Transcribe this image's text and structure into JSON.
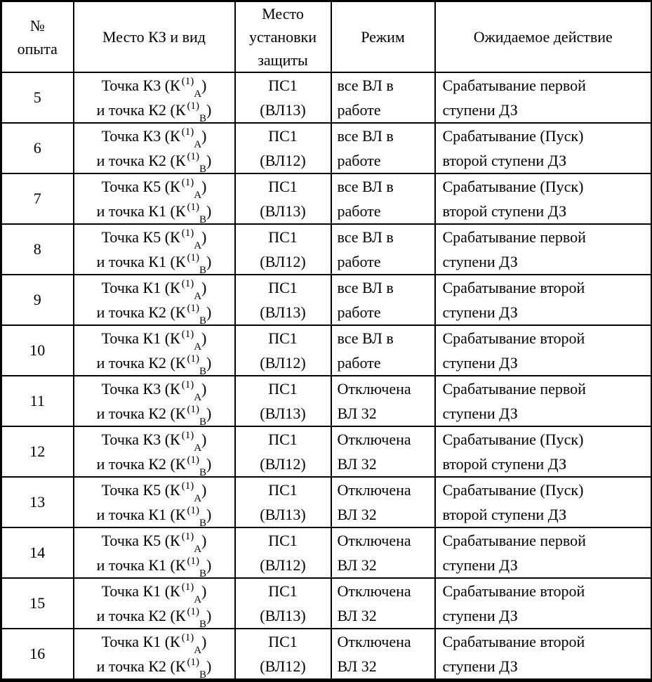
{
  "header": {
    "col_num": [
      "№",
      "опыта"
    ],
    "col_kz": "Место КЗ и вид",
    "col_install": [
      "Место",
      "установки",
      "защиты"
    ],
    "col_mode": "Режим",
    "col_action": "Ожидаемое действие"
  },
  "rows": [
    {
      "num": "5",
      "kz": [
        {
          "pre": "Точка К3 (К",
          "sup": "(1)",
          "sub": "А",
          "post": ")"
        },
        {
          "pre": "и точка К2 (К",
          "sup": "(1)",
          "sub": "В",
          "post": ")"
        }
      ],
      "install": [
        "ПС1",
        "(ВЛ13)"
      ],
      "mode": [
        "все ВЛ в",
        "работе"
      ],
      "action": [
        "Срабатывание первой",
        "ступени ДЗ"
      ]
    },
    {
      "num": "6",
      "kz": [
        {
          "pre": "Точка К3 (К",
          "sup": "(1)",
          "sub": "А",
          "post": ")"
        },
        {
          "pre": "и точка К2 (К",
          "sup": "(1)",
          "sub": "В",
          "post": ")"
        }
      ],
      "install": [
        "ПС1",
        "(ВЛ12)"
      ],
      "mode": [
        "все ВЛ в",
        "работе"
      ],
      "action": [
        "Срабатывание (Пуск)",
        "второй ступени ДЗ"
      ]
    },
    {
      "num": "7",
      "kz": [
        {
          "pre": "Точка К5 (К",
          "sup": "(1)",
          "sub": "А",
          "post": ")"
        },
        {
          "pre": "и точка К1 (К",
          "sup": "(1)",
          "sub": "В",
          "post": ")"
        }
      ],
      "install": [
        "ПС1",
        "(ВЛ13)"
      ],
      "mode": [
        "все ВЛ в",
        "работе"
      ],
      "action": [
        "Срабатывание (Пуск)",
        "второй ступени ДЗ"
      ]
    },
    {
      "num": "8",
      "kz": [
        {
          "pre": "Точка К5 (К",
          "sup": "(1)",
          "sub": "А",
          "post": ")"
        },
        {
          "pre": "и точка К1 (К",
          "sup": "(1)",
          "sub": "В",
          "post": ")"
        }
      ],
      "install": [
        "ПС1",
        "(ВЛ12)"
      ],
      "mode": [
        "все ВЛ в",
        "работе"
      ],
      "action": [
        "Срабатывание первой",
        "ступени ДЗ"
      ]
    },
    {
      "num": "9",
      "kz": [
        {
          "pre": "Точка К1 (К",
          "sup": "(1)",
          "sub": "А",
          "post": ")"
        },
        {
          "pre": "и точка К2 (К",
          "sup": "(1)",
          "sub": "В",
          "post": ")"
        }
      ],
      "install": [
        "ПС1",
        "(ВЛ13)"
      ],
      "mode": [
        "все ВЛ в",
        "работе"
      ],
      "action": [
        "Срабатывание второй",
        "ступени ДЗ"
      ]
    },
    {
      "num": "10",
      "kz": [
        {
          "pre": "Точка К1 (К",
          "sup": "(1)",
          "sub": "А",
          "post": ")"
        },
        {
          "pre": "и точка К2 (К",
          "sup": "(1)",
          "sub": "В",
          "post": ")"
        }
      ],
      "install": [
        "ПС1",
        "(ВЛ12)"
      ],
      "mode": [
        "все ВЛ в",
        "работе"
      ],
      "action": [
        "Срабатывание второй",
        "ступени ДЗ"
      ]
    },
    {
      "num": "11",
      "kz": [
        {
          "pre": "Точка К3 (К",
          "sup": "(1)",
          "sub": "А",
          "post": ")"
        },
        {
          "pre": "и точка К2 (К",
          "sup": "(1)",
          "sub": "В",
          "post": ")"
        }
      ],
      "install": [
        "ПС1",
        "(ВЛ13)"
      ],
      "mode": [
        "Отключена",
        "ВЛ 32"
      ],
      "action": [
        "Срабатывание первой",
        "ступени ДЗ"
      ]
    },
    {
      "num": "12",
      "kz": [
        {
          "pre": "Точка К3 (К",
          "sup": "(1)",
          "sub": "А",
          "post": ")"
        },
        {
          "pre": "и точка К2 (К",
          "sup": "(1)",
          "sub": "В",
          "post": ")"
        }
      ],
      "install": [
        "ПС1",
        "(ВЛ12)"
      ],
      "mode": [
        "Отключена",
        "ВЛ 32"
      ],
      "action": [
        "Срабатывание (Пуск)",
        "второй ступени ДЗ"
      ]
    },
    {
      "num": "13",
      "kz": [
        {
          "pre": "Точка К5 (К",
          "sup": "(1)",
          "sub": "А",
          "post": ")"
        },
        {
          "pre": "и точка К1 (К",
          "sup": "(1)",
          "sub": "В",
          "post": ")"
        }
      ],
      "install": [
        "ПС1",
        "(ВЛ13)"
      ],
      "mode": [
        "Отключена",
        "ВЛ 32"
      ],
      "action": [
        "Срабатывание (Пуск)",
        "второй ступени ДЗ"
      ]
    },
    {
      "num": "14",
      "kz": [
        {
          "pre": "Точка К5 (К",
          "sup": "(1)",
          "sub": "А",
          "post": ")"
        },
        {
          "pre": "и точка К1 (К",
          "sup": "(1)",
          "sub": "В",
          "post": ")"
        }
      ],
      "install": [
        "ПС1",
        "(ВЛ12)"
      ],
      "mode": [
        "Отключена",
        "ВЛ 32"
      ],
      "action": [
        "Срабатывание первой",
        "ступени ДЗ"
      ]
    },
    {
      "num": "15",
      "kz": [
        {
          "pre": "Точка К1 (К",
          "sup": "(1)",
          "sub": "А",
          "post": ")"
        },
        {
          "pre": "и точка К2 (К",
          "sup": "(1)",
          "sub": "В",
          "post": ")"
        }
      ],
      "install": [
        "ПС1",
        "(ВЛ13)"
      ],
      "mode": [
        "Отключена",
        "ВЛ 32"
      ],
      "action": [
        "Срабатывание второй",
        "ступени ДЗ"
      ]
    },
    {
      "num": "16",
      "kz": [
        {
          "pre": "Точка К1 (К",
          "sup": "(1)",
          "sub": "А",
          "post": ")"
        },
        {
          "pre": "и точка К2 (К",
          "sup": "(1)",
          "sub": "В",
          "post": ")"
        }
      ],
      "install": [
        "ПС1",
        "(ВЛ12)"
      ],
      "mode": [
        "Отключена",
        "ВЛ 32"
      ],
      "action": [
        "Срабатывание второй",
        "ступени ДЗ"
      ]
    }
  ]
}
